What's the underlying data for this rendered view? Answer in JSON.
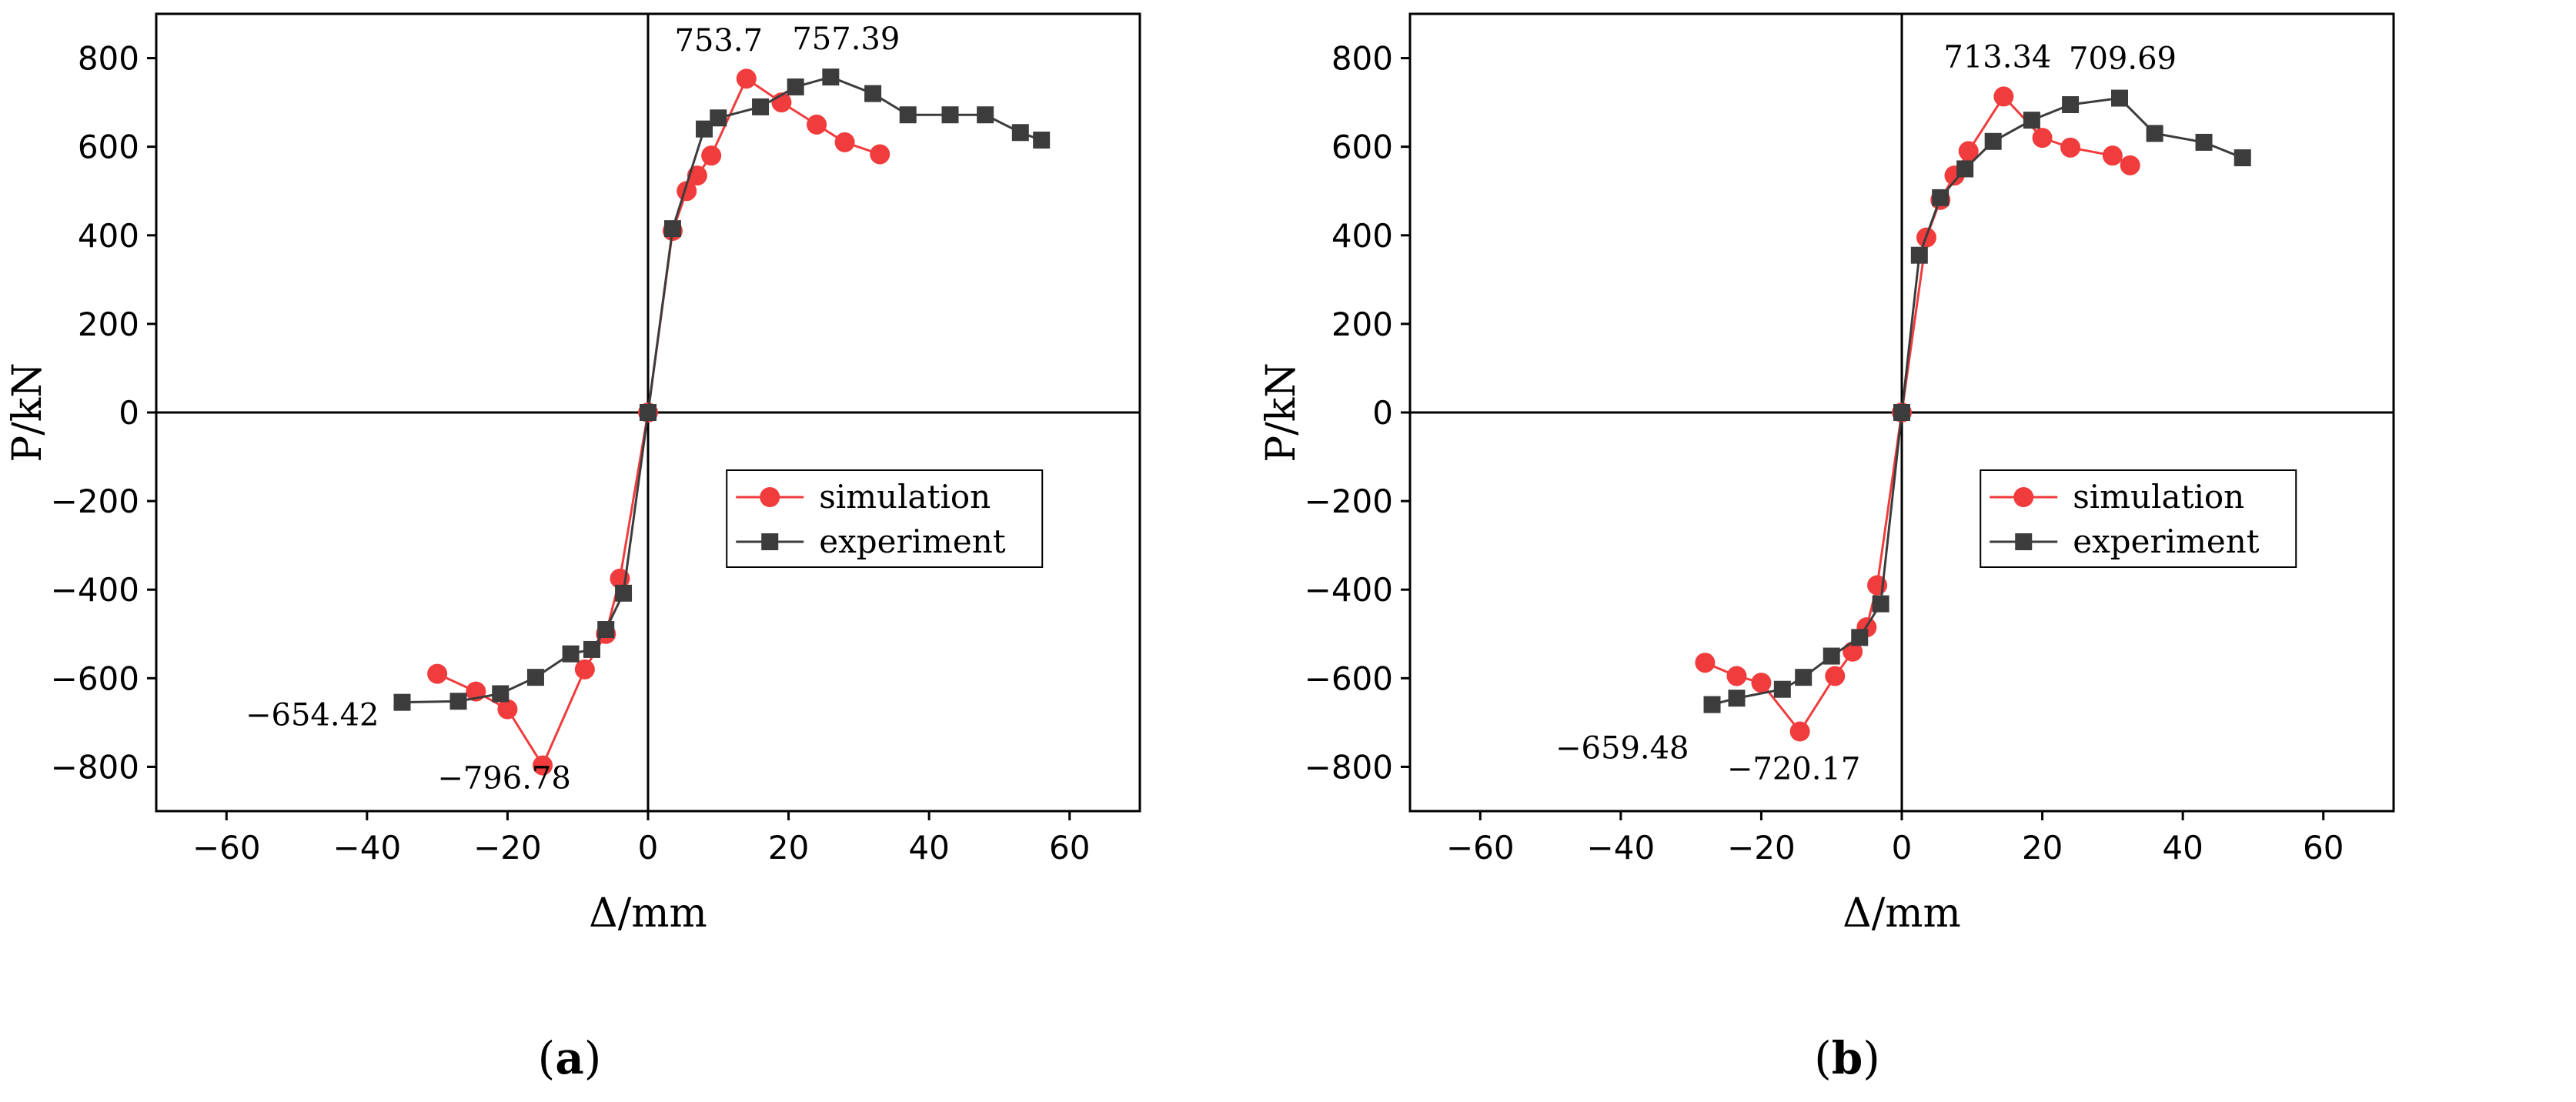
{
  "colors": {
    "simulation": "#f03c3c",
    "experiment": "#3c3c3c",
    "axis": "#000000"
  },
  "chart_data": [
    {
      "id": "a",
      "type": "line",
      "caption_letter": "a",
      "xlabel": "Δ/mm",
      "ylabel": "P/kN",
      "xlim": [
        -70,
        70
      ],
      "ylim": [
        -900,
        900
      ],
      "xticks": [
        "-60",
        "-40",
        "-20",
        "0",
        "20",
        "40",
        "60"
      ],
      "yticks": [
        "-800",
        "-600",
        "-400",
        "-200",
        "0",
        "200",
        "400",
        "600",
        "800"
      ],
      "legend_position": "center-right",
      "series": [
        {
          "name": "simulation",
          "marker": "circle",
          "x": [
            -30,
            -24.5,
            -20,
            -15,
            -9,
            -6,
            -4,
            0,
            3.5,
            5.5,
            7,
            9,
            14,
            19,
            24,
            28,
            33
          ],
          "y": [
            -590,
            -630,
            -670,
            -796.78,
            -580,
            -500,
            -375,
            0,
            410,
            500,
            535,
            580,
            753.7,
            700,
            650,
            610,
            583
          ]
        },
        {
          "name": "experiment",
          "marker": "square",
          "x": [
            -35,
            -27,
            -21,
            -16,
            -11,
            -8,
            -6,
            -3.5,
            0,
            3.5,
            8,
            10,
            16,
            21,
            26,
            32,
            37,
            43,
            48,
            53,
            56
          ],
          "y": [
            -654.42,
            -652,
            -635,
            -598,
            -545,
            -535,
            -490,
            -408,
            0,
            415,
            640,
            665,
            690,
            735,
            757.39,
            720,
            672,
            672,
            672,
            632,
            615
          ]
        }
      ],
      "annotations": [
        {
          "text": "753.7",
          "x": 14,
          "y": 753.7
        },
        {
          "text": "757.39",
          "x": 26,
          "y": 757.39
        },
        {
          "text": "-654.42",
          "x": -35,
          "y": -654.42
        },
        {
          "text": "-796.78",
          "x": -15,
          "y": -796.78
        }
      ]
    },
    {
      "id": "b",
      "type": "line",
      "caption_letter": "b",
      "xlabel": "Δ/mm",
      "ylabel": "P/kN",
      "xlim": [
        -70,
        70
      ],
      "ylim": [
        -900,
        900
      ],
      "xticks": [
        "-60",
        "-40",
        "-20",
        "0",
        "20",
        "40",
        "60"
      ],
      "yticks": [
        "-800",
        "-600",
        "-400",
        "-200",
        "0",
        "200",
        "400",
        "600",
        "800"
      ],
      "legend_position": "center-right",
      "series": [
        {
          "name": "simulation",
          "marker": "circle",
          "x": [
            -28,
            -23.5,
            -20,
            -14.5,
            -9.5,
            -7,
            -5,
            -3.5,
            0,
            3.5,
            5.5,
            7.5,
            9.5,
            14.5,
            20,
            24,
            30,
            32.5
          ],
          "y": [
            -565,
            -595,
            -610,
            -720.17,
            -595,
            -540,
            -485,
            -390,
            0,
            395,
            480,
            535,
            590,
            713.34,
            620,
            598,
            580,
            558
          ]
        },
        {
          "name": "experiment",
          "marker": "square",
          "x": [
            -27,
            -23.5,
            -17,
            -14,
            -10,
            -6,
            -3,
            0,
            2.5,
            5.5,
            9,
            13,
            18.5,
            24,
            31,
            36,
            43,
            48.5
          ],
          "y": [
            -659.48,
            -645,
            -625,
            -598,
            -550,
            -508,
            -432,
            0,
            355,
            485,
            550,
            612,
            660,
            695,
            709.69,
            630,
            610,
            575
          ]
        }
      ],
      "annotations": [
        {
          "text": "713.34",
          "x": 14.5,
          "y": 713.34
        },
        {
          "text": "709.69",
          "x": 31,
          "y": 709.69
        },
        {
          "text": "-659.48",
          "x": -27,
          "y": -659.48
        },
        {
          "text": "-720.17",
          "x": -14.5,
          "y": -720.17
        }
      ]
    }
  ]
}
